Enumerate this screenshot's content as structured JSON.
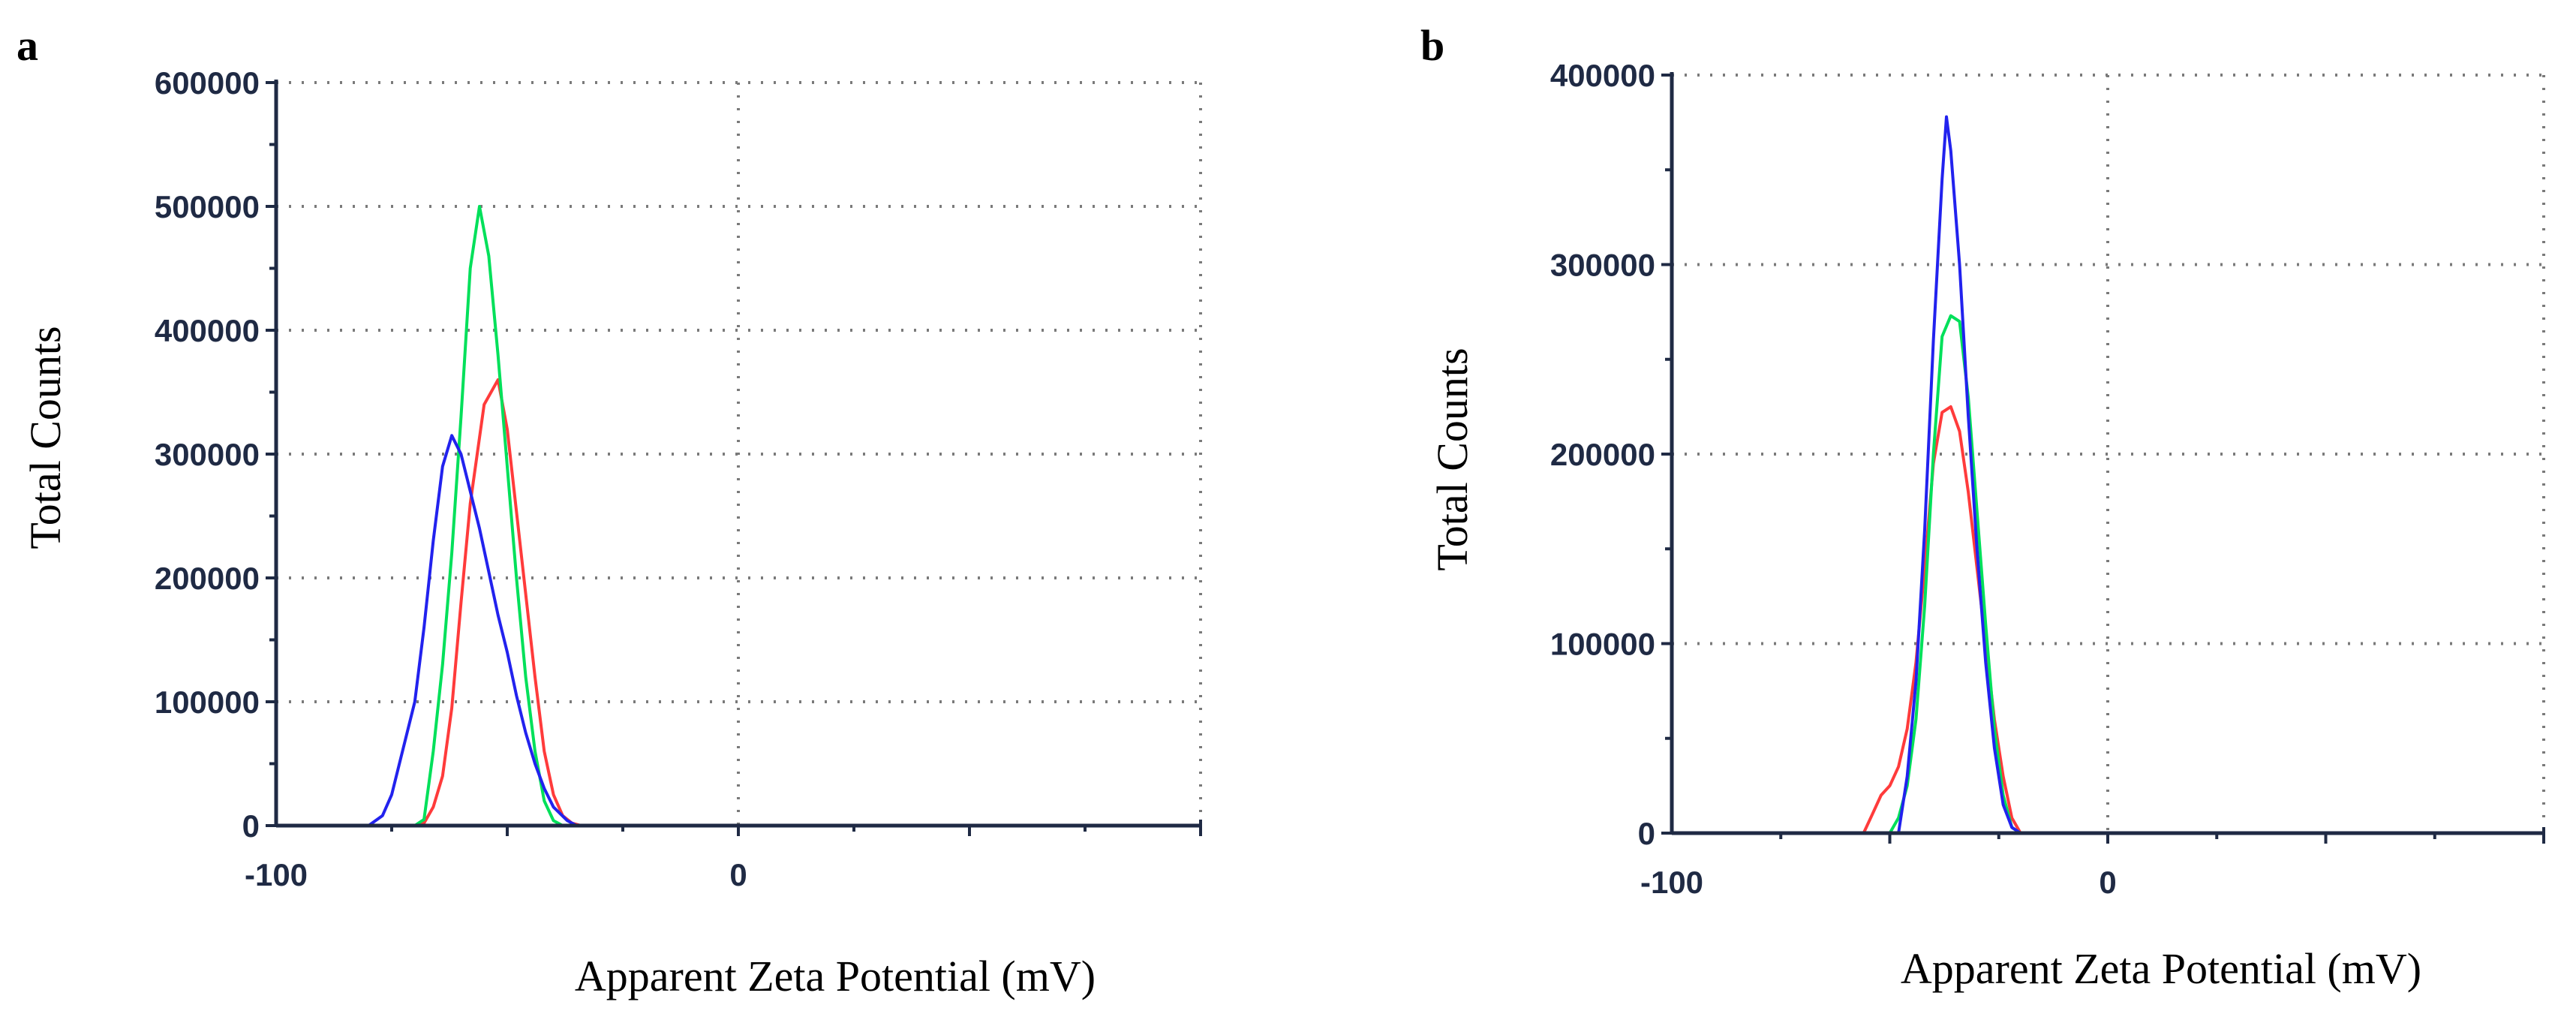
{
  "chart_data": [
    {
      "type": "line",
      "panel": "a",
      "xlabel": "Apparent Zeta Potential (mV)",
      "ylabel": "Total Counts",
      "xlim": [
        -100,
        100
      ],
      "ylim": [
        0,
        600000
      ],
      "xticks": [
        -100,
        0
      ],
      "yticks": [
        0,
        100000,
        200000,
        300000,
        400000,
        500000,
        600000
      ],
      "ytick_labels": [
        "0",
        "100000",
        "200000",
        "300000",
        "400000",
        "500000",
        "600000"
      ],
      "grid": true,
      "series": [
        {
          "name": "red",
          "color": "#ff3b3b",
          "x": [
            -100,
            -80,
            -70,
            -68,
            -66,
            -64,
            -62,
            -60,
            -58,
            -55,
            -52,
            -50,
            -47,
            -44,
            -42,
            -40,
            -38,
            -36,
            -34,
            -30,
            -20,
            100
          ],
          "y": [
            0,
            0,
            0,
            2000,
            15000,
            40000,
            95000,
            180000,
            260000,
            340000,
            360000,
            320000,
            220000,
            120000,
            60000,
            25000,
            8000,
            2000,
            0,
            0,
            0,
            0
          ]
        },
        {
          "name": "green",
          "color": "#00e05a",
          "x": [
            -100,
            -70,
            -68,
            -66,
            -64,
            -62,
            -60,
            -58,
            -56,
            -54,
            -52,
            -50,
            -48,
            -46,
            -44,
            -42,
            -40,
            -38,
            -36,
            100
          ],
          "y": [
            0,
            0,
            5000,
            60000,
            130000,
            220000,
            330000,
            450000,
            500000,
            460000,
            380000,
            290000,
            200000,
            120000,
            60000,
            20000,
            4000,
            0,
            0,
            0
          ]
        },
        {
          "name": "blue",
          "color": "#2222ee",
          "x": [
            -100,
            -80,
            -77,
            -75,
            -73,
            -70,
            -68,
            -66,
            -64,
            -62,
            -60,
            -58,
            -56,
            -54,
            -52,
            -50,
            -48,
            -46,
            -44,
            -42,
            -40,
            -37,
            -35,
            100
          ],
          "y": [
            0,
            0,
            8000,
            25000,
            55000,
            100000,
            160000,
            230000,
            290000,
            315000,
            300000,
            270000,
            240000,
            205000,
            170000,
            140000,
            105000,
            75000,
            50000,
            30000,
            15000,
            4000,
            0,
            0
          ]
        }
      ]
    },
    {
      "type": "line",
      "panel": "b",
      "xlabel": "Apparent Zeta Potential (mV)",
      "ylabel": "Total Counts",
      "xlim": [
        -100,
        100
      ],
      "ylim": [
        0,
        400000
      ],
      "xticks": [
        -100,
        0
      ],
      "yticks": [
        0,
        100000,
        200000,
        300000,
        400000
      ],
      "ytick_labels": [
        "0",
        "100000",
        "200000",
        "300000",
        "400000"
      ],
      "grid": true,
      "series": [
        {
          "name": "red",
          "color": "#ff3b3b",
          "x": [
            -100,
            -56,
            -54,
            -52,
            -50,
            -48,
            -46,
            -44,
            -42,
            -40,
            -38,
            -36,
            -34,
            -32,
            -30,
            -28,
            -26,
            -24,
            -22,
            -20,
            -18,
            -16,
            100
          ],
          "y": [
            0,
            0,
            10000,
            20000,
            25000,
            35000,
            55000,
            90000,
            140000,
            195000,
            222000,
            225000,
            212000,
            180000,
            140000,
            100000,
            60000,
            30000,
            8000,
            0,
            0,
            0,
            0
          ]
        },
        {
          "name": "green",
          "color": "#00e05a",
          "x": [
            -100,
            -50,
            -48,
            -46,
            -44,
            -42,
            -40,
            -38,
            -36,
            -34,
            -32,
            -30,
            -28,
            -26,
            -24,
            -22,
            -20,
            100
          ],
          "y": [
            0,
            0,
            8000,
            25000,
            60000,
            120000,
            200000,
            262000,
            273000,
            270000,
            230000,
            170000,
            110000,
            55000,
            20000,
            3000,
            0,
            0
          ]
        },
        {
          "name": "blue",
          "color": "#2222ee",
          "x": [
            -100,
            -48,
            -46,
            -44,
            -42,
            -40,
            -38,
            -37,
            -36,
            -34,
            -32,
            -30,
            -28,
            -26,
            -24,
            -22,
            -20,
            -18,
            100
          ],
          "y": [
            0,
            0,
            30000,
            80000,
            160000,
            260000,
            345000,
            378000,
            360000,
            300000,
            220000,
            150000,
            90000,
            45000,
            15000,
            3000,
            0,
            0,
            0
          ]
        }
      ]
    }
  ]
}
